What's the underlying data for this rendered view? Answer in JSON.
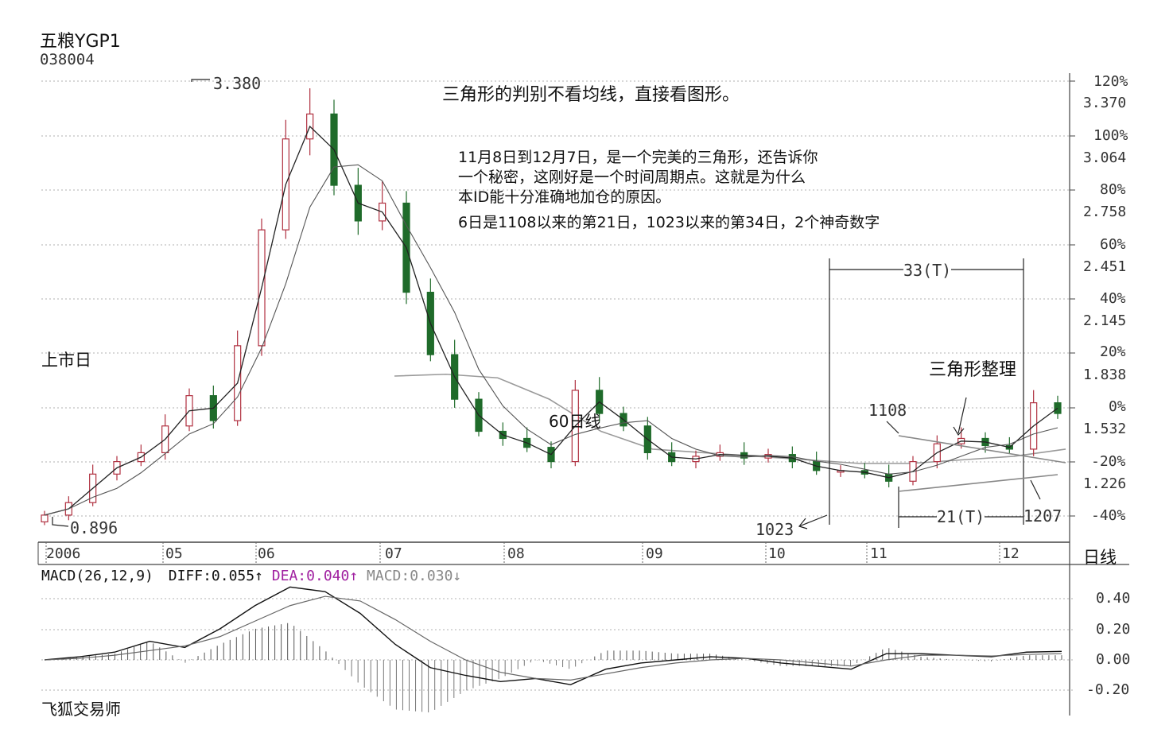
{
  "header": {
    "name": "五粮YGP1",
    "code": "038004"
  },
  "annotations": {
    "main_note": "三角形的判别不看均线，直接看图形。",
    "sub_note_lines": [
      "11月8日到12月7日，是一个完美的三角形，还告诉你",
      "一个秘密，这刚好是一个时间周期点。这就是为什么",
      "本ID能十分准确地加仓的原因。",
      "6日是1108以来的第21日，1023以来的第34日，2个神奇数字"
    ],
    "listing_day": "上市日",
    "high_label": "3.380",
    "low_label": "0.896",
    "ma60_label": "60日线",
    "triangle_label": "三角形整理",
    "label_1108": "1108",
    "label_1023": "1023",
    "label_1207": "1207",
    "span_33": "33(T)",
    "span_21": "21(T)",
    "footer": "飞狐交易师"
  },
  "axes": {
    "price_ticks": [
      "3.370",
      "3.064",
      "2.758",
      "2.451",
      "2.145",
      "1.838",
      "1.532",
      "1.226"
    ],
    "pct_ticks": [
      "120%",
      "100%",
      "80%",
      "60%",
      "40%",
      "20%",
      "0%",
      "-20%",
      "-40%"
    ],
    "time_labels": [
      "2006",
      "05",
      "06",
      "07",
      "08",
      "09",
      "10",
      "11",
      "12"
    ],
    "period_label": "日线",
    "macd_ticks": [
      "0.40",
      "0.20",
      "0.00",
      "-0.20"
    ]
  },
  "macd_header": {
    "title": "MACD(26,12,9)",
    "diff": "DIFF:0.055",
    "dea": "DEA:0.040",
    "macd": "MACD:0.030"
  },
  "colors": {
    "up_candle": "#b03040",
    "down_candle": "#1f6b2a",
    "ma_short": "#222222",
    "ma60": "#9a9a9a",
    "dea": "#a020a0",
    "grid": "#b0b0b0"
  },
  "chart_data": [
    {
      "type": "candlestick",
      "title": "五粮YGP1 038004",
      "period": "日线",
      "ylim": [
        0.896,
        3.38
      ],
      "base_price": 1.532,
      "points": [
        {
          "label": "2006",
          "close": 0.95
        },
        {
          "label": "",
          "close": 1.02
        },
        {
          "label": "",
          "close": 1.18
        },
        {
          "label": "",
          "close": 1.25
        },
        {
          "label": "",
          "close": 1.3
        },
        {
          "label": "",
          "close": 1.45
        },
        {
          "label": "",
          "close": 1.62
        },
        {
          "label": "05",
          "close": 1.48
        },
        {
          "label": "",
          "close": 1.9
        },
        {
          "label": "",
          "close": 2.55
        },
        {
          "label": "",
          "close": 3.06
        },
        {
          "label": "",
          "close": 3.2
        },
        {
          "label": "",
          "close": 2.8
        },
        {
          "label": "",
          "close": 2.6
        },
        {
          "label": "06",
          "close": 2.7
        },
        {
          "label": "",
          "close": 2.2
        },
        {
          "label": "",
          "close": 1.85
        },
        {
          "label": "",
          "close": 1.6
        },
        {
          "label": "",
          "close": 1.42
        },
        {
          "label": "",
          "close": 1.38
        },
        {
          "label": "07",
          "close": 1.33
        },
        {
          "label": "",
          "close": 1.25
        },
        {
          "label": "",
          "close": 1.65
        },
        {
          "label": "",
          "close": 1.52
        },
        {
          "label": "",
          "close": 1.45
        },
        {
          "label": "08",
          "close": 1.3
        },
        {
          "label": "",
          "close": 1.25
        },
        {
          "label": "",
          "close": 1.28
        },
        {
          "label": "",
          "close": 1.3
        },
        {
          "label": "09",
          "close": 1.27
        },
        {
          "label": "",
          "close": 1.29
        },
        {
          "label": "",
          "close": 1.25
        },
        {
          "label": "",
          "close": 1.2
        },
        {
          "label": "10",
          "close": 1.2
        },
        {
          "label": "",
          "close": 1.18
        },
        {
          "label": "",
          "close": 1.14
        },
        {
          "label": "11",
          "close": 1.25
        },
        {
          "label": "",
          "close": 1.35
        },
        {
          "label": "",
          "close": 1.38
        },
        {
          "label": "",
          "close": 1.34
        },
        {
          "label": "12",
          "close": 1.32
        },
        {
          "label": "",
          "close": 1.58
        },
        {
          "label": "",
          "close": 1.52
        }
      ]
    },
    {
      "type": "line",
      "title": "60日线",
      "points": [
        {
          "label": "07",
          "value": 1.73
        },
        {
          "label": "",
          "value": 1.74
        },
        {
          "label": "",
          "value": 1.72
        },
        {
          "label": "08",
          "value": 1.6
        },
        {
          "label": "",
          "value": 1.42
        },
        {
          "label": "",
          "value": 1.32
        },
        {
          "label": "09",
          "value": 1.3
        },
        {
          "label": "",
          "value": 1.28
        },
        {
          "label": "10",
          "value": 1.26
        },
        {
          "label": "",
          "value": 1.24
        },
        {
          "label": "11",
          "value": 1.24
        },
        {
          "label": "",
          "value": 1.26
        },
        {
          "label": "12",
          "value": 1.28
        },
        {
          "label": "",
          "value": 1.32
        }
      ]
    },
    {
      "type": "macd",
      "params": "26,12,9",
      "ylim": [
        -0.3,
        0.5
      ],
      "diff": [
        0.0,
        0.02,
        0.05,
        0.12,
        0.08,
        0.2,
        0.35,
        0.47,
        0.44,
        0.3,
        0.1,
        -0.05,
        -0.1,
        -0.14,
        -0.12,
        -0.16,
        -0.06,
        -0.02,
        0.0,
        0.02,
        0.01,
        -0.02,
        -0.04,
        -0.06,
        0.04,
        0.04,
        0.03,
        0.02,
        0.05,
        0.055
      ],
      "dea": [
        0.0,
        0.01,
        0.03,
        0.06,
        0.09,
        0.15,
        0.25,
        0.35,
        0.41,
        0.38,
        0.26,
        0.12,
        0.0,
        -0.08,
        -0.12,
        -0.13,
        -0.09,
        -0.05,
        -0.02,
        0.0,
        0.01,
        0.0,
        -0.02,
        -0.04,
        0.0,
        0.03,
        0.03,
        0.025,
        0.035,
        0.04
      ],
      "current": {
        "DIFF": 0.055,
        "DEA": 0.04,
        "MACD": 0.03
      }
    }
  ]
}
